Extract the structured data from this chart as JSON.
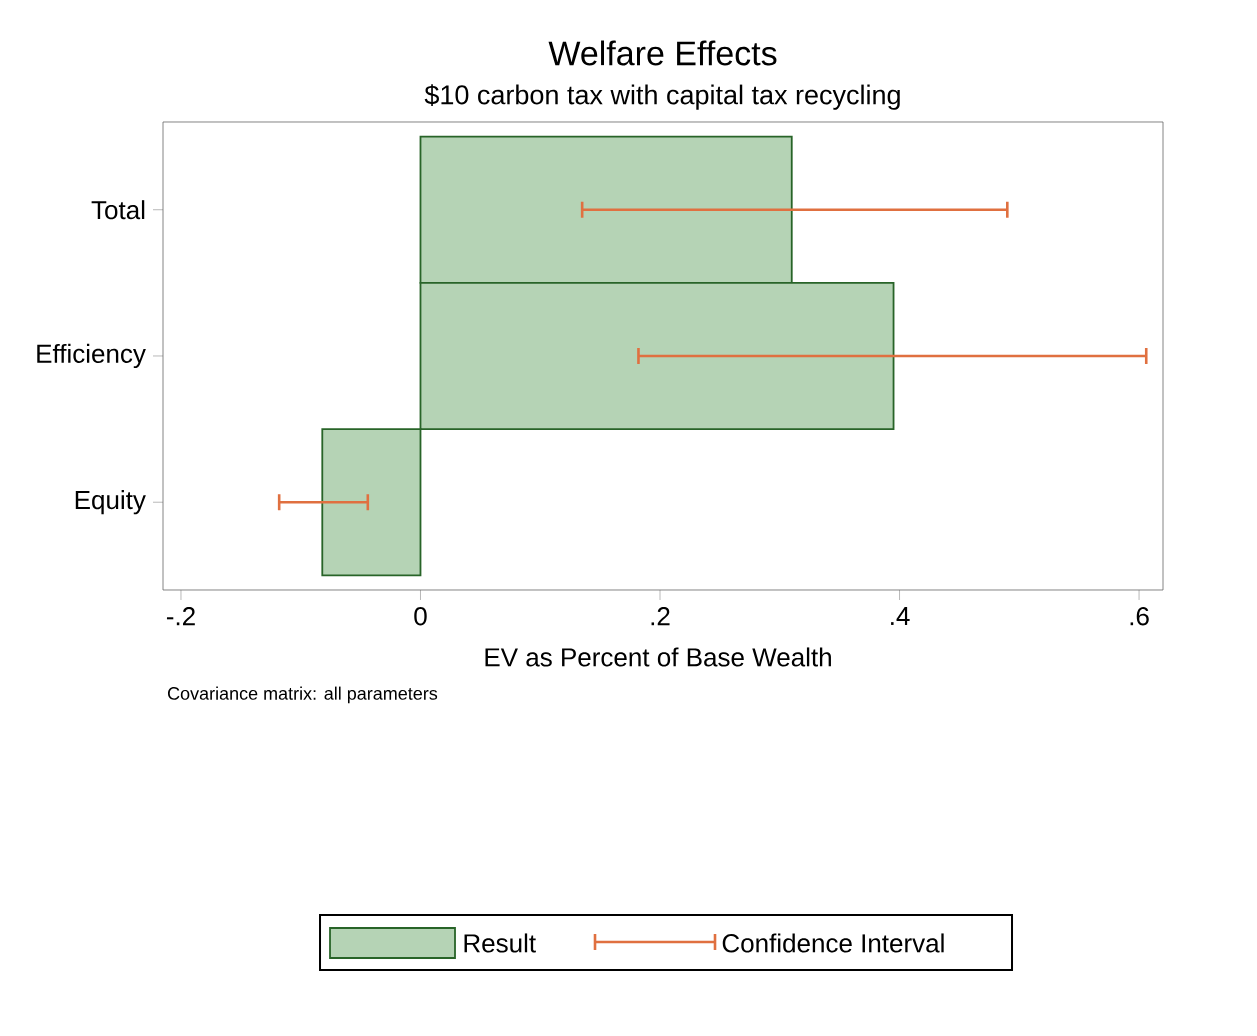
{
  "chart_data": {
    "type": "bar",
    "orientation": "horizontal",
    "title": "Welfare Effects",
    "subtitle": "$10 carbon tax with capital tax recycling",
    "xlabel": "EV as Percent of Base Wealth",
    "annotations": [
      "Covariance matrix: all parameters",
      "Confidence Interval"
    ],
    "categories": [
      "Total",
      "Efficiency",
      "Equity"
    ],
    "series": [
      {
        "name": "Result",
        "color": "#b5d3b5",
        "values": [
          0.31,
          0.395,
          -0.082
        ],
        "errors": [
          [
            0.135,
            0.49
          ],
          [
            0.182,
            0.606
          ],
          [
            -0.118,
            -0.044
          ]
        ]
      }
    ],
    "xlim": [
      -0.215,
      0.62
    ],
    "xticks": [
      {
        "value": -0.2,
        "label": "-.2"
      },
      0,
      {
        "value": 0.2,
        "label": ".2"
      },
      {
        "value": 0.4,
        "label": ".4"
      },
      {
        "value": 0.6,
        "label": ".6"
      }
    ],
    "grid": false,
    "legend": "bottom"
  }
}
